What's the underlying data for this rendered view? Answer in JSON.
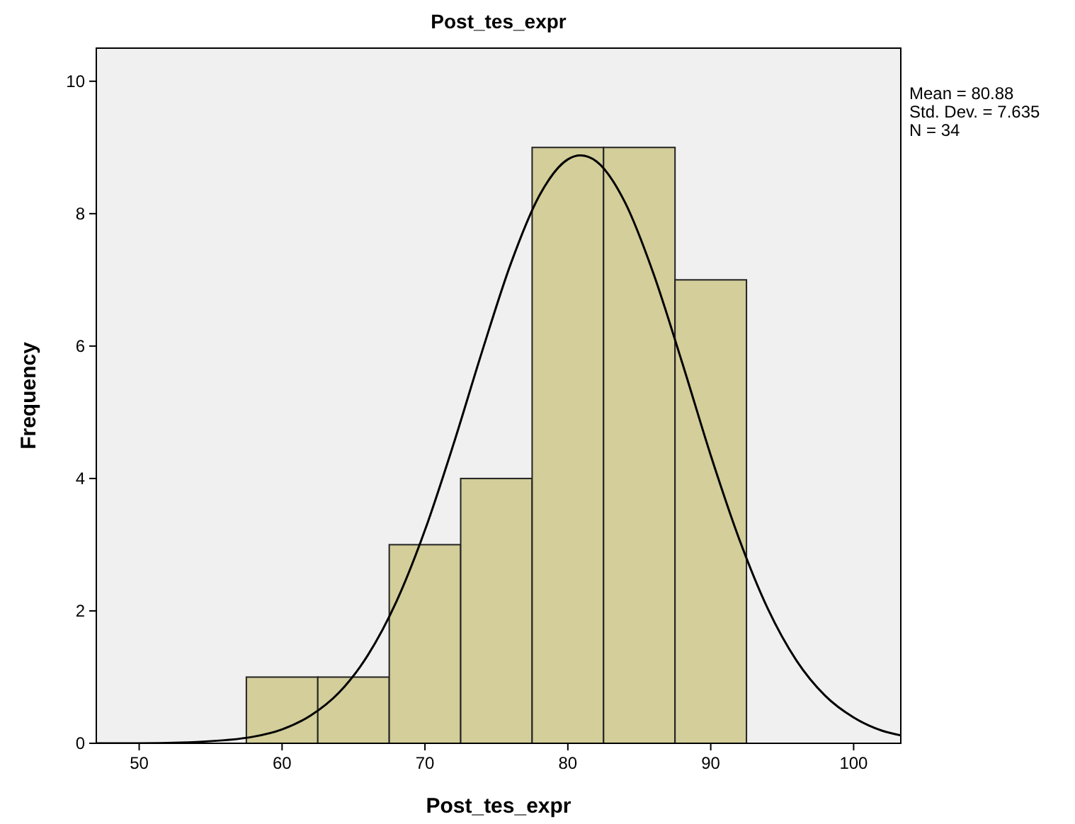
{
  "chart_data": {
    "type": "histogram",
    "title": "Post_tes_expr",
    "xlabel": "Post_tes_expr",
    "ylabel": "Frequency",
    "xlim": [
      47,
      103.3
    ],
    "xticks": [
      50,
      60,
      70,
      80,
      90,
      100
    ],
    "ylim": [
      0,
      10.5
    ],
    "yticks": [
      0,
      2,
      4,
      6,
      8,
      10
    ],
    "grid": false,
    "series": [
      {
        "color": "#d3ce9a",
        "bins": [
          57.5,
          62.5,
          67.5,
          72.5,
          77.5,
          82.5,
          87.5,
          92.5
        ],
        "values": [
          1,
          1,
          3,
          4,
          9,
          9,
          7
        ]
      },
      {
        "type": "line",
        "color": "#000000",
        "marker": "none",
        "x": [
          47,
          50,
          54,
          58,
          60,
          62,
          64,
          66,
          68,
          70,
          72,
          74,
          76,
          78,
          80,
          80.88,
          82,
          84,
          86,
          88,
          90,
          92,
          94,
          96,
          98,
          100,
          102,
          103.3
        ],
        "values": [
          0,
          0,
          0.02,
          0.1,
          0.21,
          0.42,
          0.77,
          1.33,
          2.14,
          3.22,
          4.52,
          5.92,
          7.24,
          8.27,
          8.82,
          8.88,
          8.79,
          8.17,
          7.09,
          5.75,
          4.35,
          3.08,
          2.03,
          1.25,
          0.72,
          0.39,
          0.19,
          0.12
        ]
      }
    ],
    "annotations": [
      "Mean = 80.88",
      "Std. Dev. = 7.635",
      "N = 34"
    ]
  }
}
